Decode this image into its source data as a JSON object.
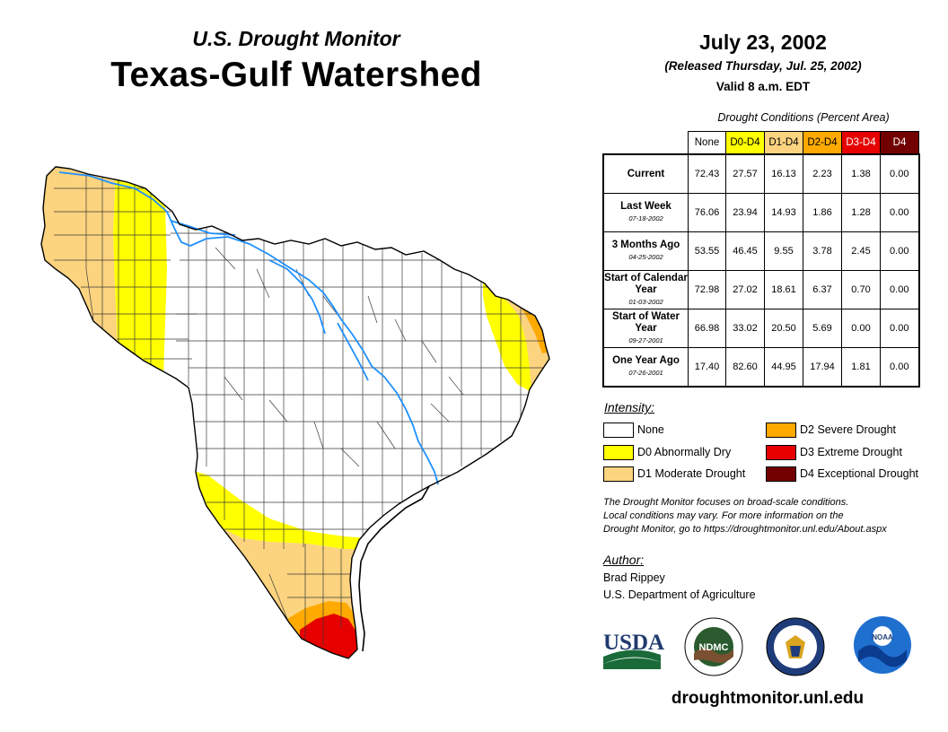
{
  "header": {
    "subtitle": "U.S. Drought Monitor",
    "title": "Texas-Gulf Watershed",
    "date": "July 23, 2002",
    "released": "(Released Thursday, Jul. 25, 2002)",
    "valid": "Valid 8 a.m. EDT"
  },
  "table": {
    "caption": "Drought Conditions (Percent Area)",
    "columns": [
      "None",
      "D0-D4",
      "D1-D4",
      "D2-D4",
      "D3-D4",
      "D4"
    ],
    "column_colors": [
      "#ffffff",
      "#ffff00",
      "#fcd37f",
      "#ffaa00",
      "#e60000",
      "#730000"
    ],
    "rows": [
      {
        "label": "Current",
        "date": "",
        "values": [
          "72.43",
          "27.57",
          "16.13",
          "2.23",
          "1.38",
          "0.00"
        ]
      },
      {
        "label": "Last Week",
        "date": "07-18-2002",
        "values": [
          "76.06",
          "23.94",
          "14.93",
          "1.86",
          "1.28",
          "0.00"
        ]
      },
      {
        "label": "3 Months Ago",
        "date": "04-25-2002",
        "values": [
          "53.55",
          "46.45",
          "9.55",
          "3.78",
          "2.45",
          "0.00"
        ]
      },
      {
        "label": "Start of Calendar Year",
        "date": "01-03-2002",
        "values": [
          "72.98",
          "27.02",
          "18.61",
          "6.37",
          "0.70",
          "0.00"
        ]
      },
      {
        "label": "Start of Water Year",
        "date": "09-27-2001",
        "values": [
          "66.98",
          "33.02",
          "20.50",
          "5.69",
          "0.00",
          "0.00"
        ]
      },
      {
        "label": "One Year Ago",
        "date": "07-26-2001",
        "values": [
          "17.40",
          "82.60",
          "44.95",
          "17.94",
          "1.81",
          "0.00"
        ]
      }
    ]
  },
  "legend": {
    "title": "Intensity:",
    "items": [
      {
        "label": "None",
        "color": "#ffffff"
      },
      {
        "label": "D0 Abnormally Dry",
        "color": "#ffff00"
      },
      {
        "label": "D1 Moderate Drought",
        "color": "#fcd37f"
      },
      {
        "label": "D2 Severe Drought",
        "color": "#ffaa00"
      },
      {
        "label": "D3 Extreme Drought",
        "color": "#e60000"
      },
      {
        "label": "D4 Exceptional Drought",
        "color": "#730000"
      }
    ]
  },
  "note": {
    "line1": "The Drought Monitor focuses on broad-scale conditions.",
    "line2": "Local conditions may vary. For more information on the",
    "line3": "Drought Monitor, go to https://droughtmonitor.unl.edu/About.aspx"
  },
  "author": {
    "title": "Author:",
    "name": "Brad Rippey",
    "org": "U.S. Department of Agriculture"
  },
  "logos": {
    "usda": "USDA",
    "ndmc": "NDMC",
    "noaa": "NOAA"
  },
  "website": "droughtmonitor.unl.edu",
  "colors": {
    "river": "#1e90ff",
    "d0": "#ffff00",
    "d1": "#fcd37f",
    "d2": "#ffaa00",
    "d3": "#e60000",
    "d4": "#730000"
  }
}
